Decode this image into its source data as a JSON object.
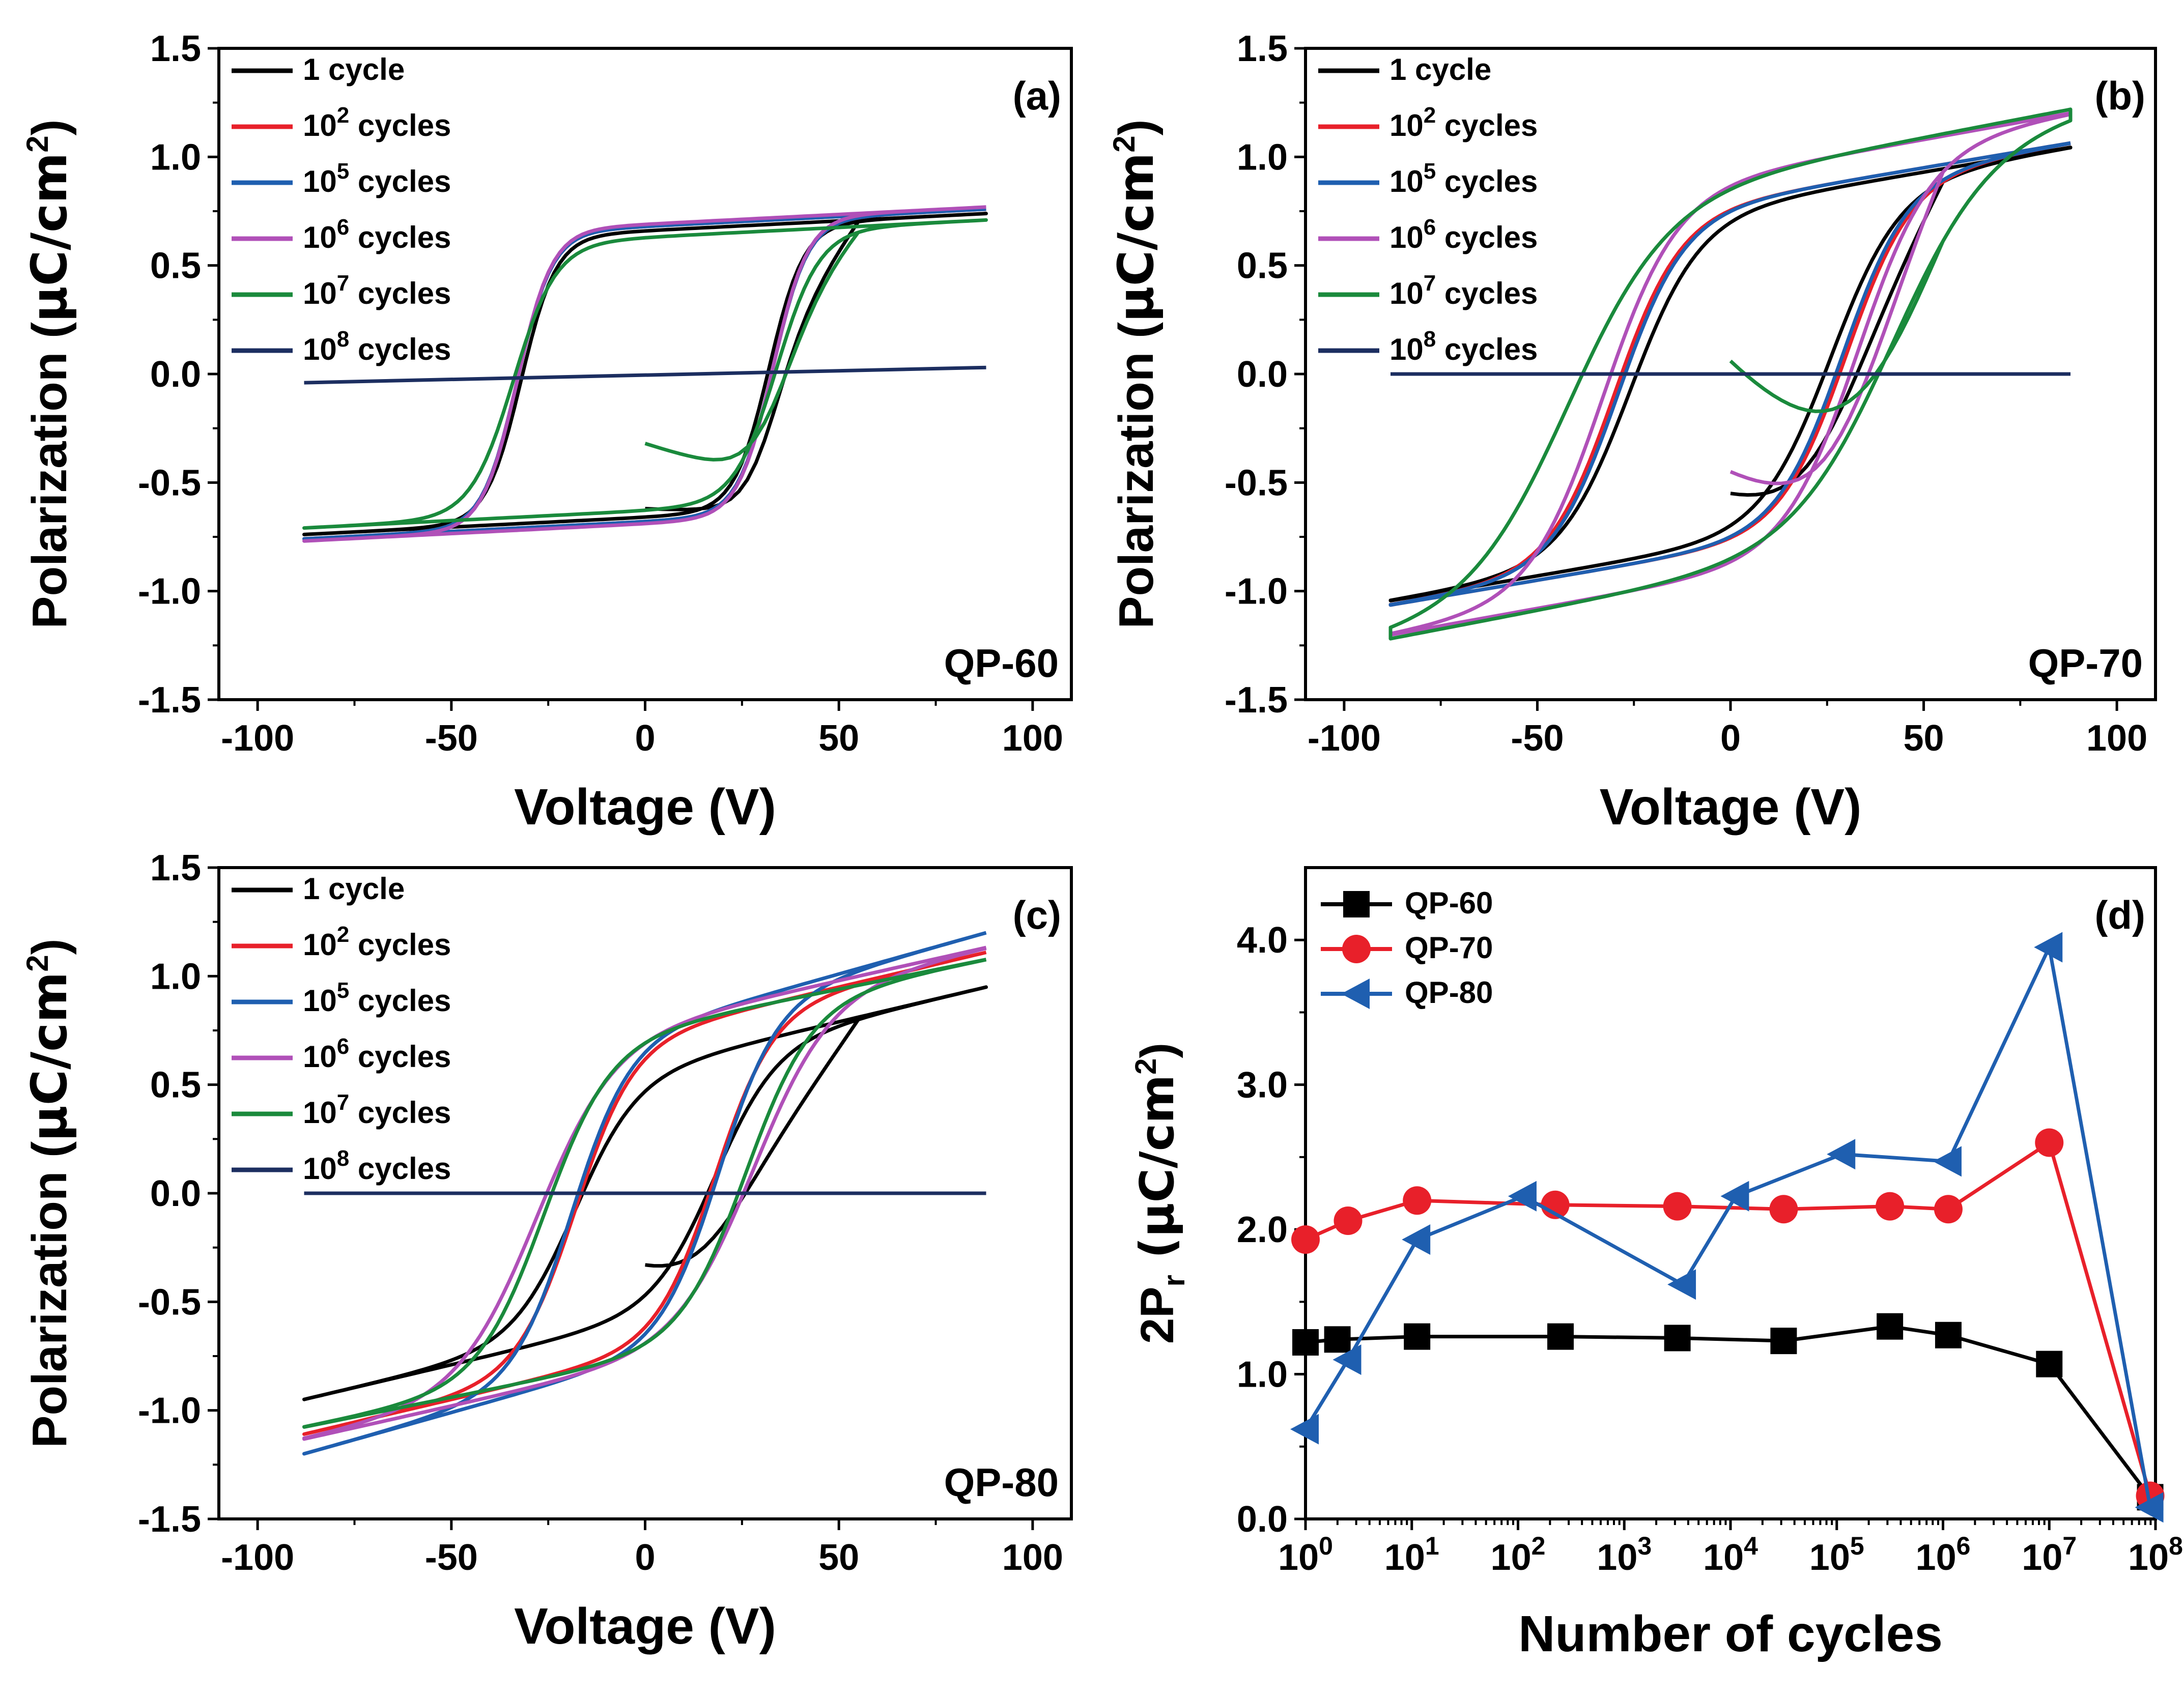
{
  "colors": {
    "black": "#000000",
    "red": "#e8202a",
    "blue": "#1f5fb0",
    "magenta": "#b050b8",
    "green": "#1a8a3c",
    "navy": "#1c2e60"
  },
  "chart_data": [
    {
      "type": "line",
      "panel": "(a)",
      "sample": "QP-60",
      "xlabel": "Voltage (V)",
      "ylabel": "Polarization (μC/cm²)",
      "ylabel_main": "Polarization (",
      "ylabel_unit": "μC/cm",
      "ylabel_sup": "2",
      "ylabel_close": ")",
      "xlim": [
        -110,
        110
      ],
      "ylim": [
        -1.5,
        1.5
      ],
      "xticks": [
        "-100",
        "-50",
        "0",
        "50",
        "100"
      ],
      "xtick_values": [
        -100,
        -50,
        0,
        50,
        100
      ],
      "yticks": [
        "-1.5",
        "-1.0",
        "-0.5",
        "0.0",
        "0.5",
        "1.0",
        "1.5"
      ],
      "ytick_values": [
        -1.5,
        -1.0,
        -0.5,
        0.0,
        0.5,
        1.0,
        1.5
      ],
      "legend": [
        {
          "base": "1 cycle",
          "sup": ""
        },
        {
          "base": "10",
          "sup": "2",
          "tail": " cycles"
        },
        {
          "base": "10",
          "sup": "5",
          "tail": " cycles"
        },
        {
          "base": "10",
          "sup": "6",
          "tail": " cycles"
        },
        {
          "base": "10",
          "sup": "7",
          "tail": " cycles"
        },
        {
          "base": "10",
          "sup": "8",
          "tail": " cycles"
        }
      ],
      "series": [
        {
          "name": "1 cycle",
          "color": "black",
          "vmax": 88,
          "ec": 32,
          "sat": 0.66,
          "slope": 0.0009,
          "wsw": 9,
          "start": [
            0,
            -0.62
          ]
        },
        {
          "name": "10^2 cycles",
          "color": "red",
          "vmax": 88,
          "ec": 33,
          "sat": 0.68,
          "slope": 0.0009,
          "wsw": 9
        },
        {
          "name": "10^5 cycles",
          "color": "blue",
          "vmax": 88,
          "ec": 33,
          "sat": 0.68,
          "slope": 0.0009,
          "wsw": 9
        },
        {
          "name": "10^6 cycles",
          "color": "magenta",
          "vmax": 88,
          "ec": 33,
          "sat": 0.69,
          "slope": 0.0009,
          "wsw": 9
        },
        {
          "name": "10^7 cycles",
          "color": "green",
          "vmax": 88,
          "ec": 34,
          "sat": 0.63,
          "slope": 0.0009,
          "wsw": 11,
          "start": [
            0,
            -0.32
          ]
        },
        {
          "name": "10^8 cycles",
          "color": "navy",
          "line": [
            [
              -88,
              -0.04
            ],
            [
              88,
              0.03
            ]
          ]
        }
      ]
    },
    {
      "type": "line",
      "panel": "(b)",
      "sample": "QP-70",
      "xlabel": "Voltage (V)",
      "ylabel": "Polarization (μC/cm²)",
      "ylabel_main": "Polarization (",
      "ylabel_unit": "μC/cm",
      "ylabel_sup": "2",
      "ylabel_close": ")",
      "xlim": [
        -110,
        110
      ],
      "ylim": [
        -1.5,
        1.5
      ],
      "xticks": [
        "-100",
        "-50",
        "0",
        "50",
        "100"
      ],
      "xtick_values": [
        -100,
        -50,
        0,
        50,
        100
      ],
      "yticks": [
        "-1.5",
        "-1.0",
        "-0.5",
        "0.0",
        "0.5",
        "1.0",
        "1.5"
      ],
      "ytick_values": [
        -1.5,
        -1.0,
        -0.5,
        0.0,
        0.5,
        1.0,
        1.5
      ],
      "legend": [
        {
          "base": "1 cycle",
          "sup": ""
        },
        {
          "base": "10",
          "sup": "2",
          "tail": " cycles"
        },
        {
          "base": "10",
          "sup": "5",
          "tail": " cycles"
        },
        {
          "base": "10",
          "sup": "6",
          "tail": " cycles"
        },
        {
          "base": "10",
          "sup": "7",
          "tail": " cycles"
        },
        {
          "base": "10",
          "sup": "8",
          "tail": " cycles"
        }
      ],
      "series": [
        {
          "name": "1 cycle",
          "color": "black",
          "vmax": 88,
          "ec": 26,
          "sat": 0.78,
          "slope": 0.003,
          "wsw": 18,
          "start": [
            0,
            -0.55
          ]
        },
        {
          "name": "10^2 cycles",
          "color": "red",
          "vmax": 88,
          "ec": 30,
          "sat": 0.8,
          "slope": 0.003,
          "wsw": 17
        },
        {
          "name": "10^5 cycles",
          "color": "blue",
          "vmax": 88,
          "ec": 29,
          "sat": 0.8,
          "slope": 0.003,
          "wsw": 17
        },
        {
          "name": "10^6 cycles",
          "color": "magenta",
          "vmax": 88,
          "ec": 33,
          "sat": 0.92,
          "slope": 0.0032,
          "wsw": 19,
          "start": [
            0,
            -0.45
          ]
        },
        {
          "name": "10^7 cycles",
          "color": "green",
          "vmax": 88,
          "ec": 42,
          "sat": 0.92,
          "slope": 0.0034,
          "wsw": 26,
          "start": [
            0,
            0.06
          ]
        },
        {
          "name": "10^8 cycles",
          "color": "navy",
          "line": [
            [
              -88,
              0.0
            ],
            [
              88,
              0.0
            ]
          ]
        }
      ]
    },
    {
      "type": "line",
      "panel": "(c)",
      "sample": "QP-80",
      "xlabel": "Voltage (V)",
      "ylabel": "Polarization (μC/cm²)",
      "ylabel_main": "Polarization (",
      "ylabel_unit": "μC/cm",
      "ylabel_sup": "2",
      "ylabel_close": ")",
      "xlim": [
        -110,
        110
      ],
      "ylim": [
        -1.5,
        1.5
      ],
      "xticks": [
        "-100",
        "-50",
        "0",
        "50",
        "100"
      ],
      "xtick_values": [
        -100,
        -50,
        0,
        50,
        100
      ],
      "yticks": [
        "-1.5",
        "-1.0",
        "-0.5",
        "0.0",
        "0.5",
        "1.0",
        "1.5"
      ],
      "ytick_values": [
        -1.5,
        -1.0,
        -0.5,
        0.0,
        0.5,
        1.0,
        1.5
      ],
      "legend": [
        {
          "base": "1 cycle",
          "sup": ""
        },
        {
          "base": "10",
          "sup": "2",
          "tail": " cycles"
        },
        {
          "base": "10",
          "sup": "5",
          "tail": " cycles"
        },
        {
          "base": "10",
          "sup": "6",
          "tail": " cycles"
        },
        {
          "base": "10",
          "sup": "7",
          "tail": " cycles"
        },
        {
          "base": "10",
          "sup": "8",
          "tail": " cycles"
        }
      ],
      "series": [
        {
          "name": "1 cycle",
          "color": "black",
          "vmax": 88,
          "ec": 18,
          "sat": 0.58,
          "slope": 0.0042,
          "wsw": 16,
          "start": [
            0,
            -0.33
          ]
        },
        {
          "name": "10^2 cycles",
          "color": "red",
          "vmax": 88,
          "ec": 18,
          "sat": 0.74,
          "slope": 0.0042,
          "wsw": 15
        },
        {
          "name": "10^5 cycles",
          "color": "blue",
          "vmax": 88,
          "ec": 19,
          "sat": 0.76,
          "slope": 0.005,
          "wsw": 15
        },
        {
          "name": "10^6 cycles",
          "color": "magenta",
          "vmax": 88,
          "ec": 28,
          "sat": 0.78,
          "slope": 0.004,
          "wsw": 20
        },
        {
          "name": "10^7 cycles",
          "color": "green",
          "vmax": 88,
          "ec": 26,
          "sat": 0.76,
          "slope": 0.0036,
          "wsw": 17
        },
        {
          "name": "10^8 cycles",
          "color": "navy",
          "line": [
            [
              -88,
              0.0
            ],
            [
              88,
              0.0
            ]
          ]
        }
      ]
    },
    {
      "type": "line",
      "panel": "(d)",
      "xlabel": "Number of cycles",
      "ylabel": "2Pr (μC/cm²)",
      "ylabel_main": "2P",
      "ylabel_sub": "r",
      "ylabel_unit": " (μC/cm",
      "ylabel_sup": "2",
      "ylabel_close": ")",
      "xscale": "log",
      "xlim_log10": [
        0,
        8
      ],
      "ylim": [
        0,
        4.5
      ],
      "xticks": [
        {
          "base": "10",
          "sup": "0"
        },
        {
          "base": "10",
          "sup": "1"
        },
        {
          "base": "10",
          "sup": "2"
        },
        {
          "base": "10",
          "sup": "3"
        },
        {
          "base": "10",
          "sup": "4"
        },
        {
          "base": "10",
          "sup": "5"
        },
        {
          "base": "10",
          "sup": "6"
        },
        {
          "base": "10",
          "sup": "7"
        },
        {
          "base": "10",
          "sup": "8"
        }
      ],
      "xtick_values_log10": [
        0,
        1,
        2,
        3,
        4,
        5,
        6,
        7,
        8
      ],
      "yticks": [
        "0.0",
        "1.0",
        "2.0",
        "3.0",
        "4.0"
      ],
      "ytick_values": [
        0.0,
        1.0,
        2.0,
        3.0,
        4.0
      ],
      "legend": [
        {
          "base": "QP-60"
        },
        {
          "base": "QP-70"
        },
        {
          "base": "QP-80"
        }
      ],
      "series": [
        {
          "name": "QP-60",
          "color": "black",
          "marker": "square",
          "x_log10": [
            0,
            0.3,
            1.05,
            2.4,
            3.5,
            4.5,
            5.5,
            6.05,
            7.0,
            7.95
          ],
          "values": [
            1.22,
            1.24,
            1.26,
            1.26,
            1.25,
            1.23,
            1.33,
            1.27,
            1.07,
            0.15
          ]
        },
        {
          "name": "QP-70",
          "color": "red",
          "marker": "circle",
          "x_log10": [
            0,
            0.4,
            1.05,
            2.35,
            3.5,
            4.5,
            5.5,
            6.05,
            7.0,
            7.95
          ],
          "values": [
            1.93,
            2.06,
            2.2,
            2.17,
            2.16,
            2.14,
            2.16,
            2.14,
            2.6,
            0.16
          ]
        },
        {
          "name": "QP-80",
          "color": "blue",
          "marker": "triangle-left",
          "x_log10": [
            0,
            0.4,
            1.05,
            2.05,
            3.55,
            4.05,
            5.05,
            6.05,
            7.0,
            7.95
          ],
          "values": [
            0.62,
            1.1,
            1.93,
            2.23,
            1.62,
            2.23,
            2.52,
            2.47,
            3.95,
            0.08
          ]
        }
      ]
    }
  ]
}
